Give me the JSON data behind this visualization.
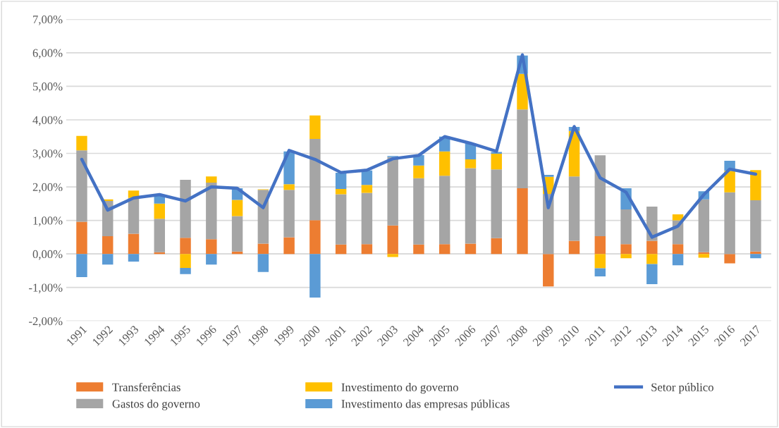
{
  "chart_data": {
    "type": "bar",
    "stacked": true,
    "grid": "y",
    "legend": "bottom",
    "categories": [
      "1991",
      "1992",
      "1993",
      "1994",
      "1995",
      "1996",
      "1997",
      "1998",
      "1999",
      "2000",
      "2001",
      "2002",
      "2003",
      "2004",
      "2005",
      "2006",
      "2007",
      "2008",
      "2009",
      "2010",
      "2011",
      "2012",
      "2013",
      "2014",
      "2015",
      "2016",
      "2017"
    ],
    "ylim": [
      -2,
      7
    ],
    "yticks": [
      {
        "value": -2,
        "label": "-2,00%"
      },
      {
        "value": -1,
        "label": "-1,00%"
      },
      {
        "value": 0,
        "label": "0,00%"
      },
      {
        "value": 1,
        "label": "1,00%"
      },
      {
        "value": 2,
        "label": "2,00%"
      },
      {
        "value": 3,
        "label": "3,00%"
      },
      {
        "value": 4,
        "label": "4,00%"
      },
      {
        "value": 5,
        "label": "5,00%"
      },
      {
        "value": 6,
        "label": "6,00%"
      },
      {
        "value": 7,
        "label": "7,00%"
      }
    ],
    "series": [
      {
        "name": "Transferências",
        "color": "#ed7d31",
        "values": [
          0.96,
          0.53,
          0.6,
          0.05,
          0.48,
          0.44,
          0.07,
          0.31,
          0.5,
          1.01,
          0.28,
          0.29,
          0.85,
          0.28,
          0.29,
          0.31,
          0.47,
          1.96,
          -0.97,
          0.39,
          0.53,
          0.29,
          0.39,
          0.29,
          0.05,
          -0.28,
          0.07
        ]
      },
      {
        "name": "Gastos do governo",
        "color": "#a5a5a5",
        "values": [
          2.13,
          1.05,
          1.07,
          1.0,
          1.73,
          1.69,
          1.06,
          1.6,
          1.41,
          2.42,
          1.5,
          1.53,
          2.04,
          1.98,
          2.04,
          2.25,
          2.05,
          2.35,
          1.79,
          1.92,
          2.41,
          1.04,
          1.02,
          0.71,
          1.58,
          1.84,
          1.53
        ]
      },
      {
        "name": "Investimento do governo",
        "color": "#ffc000",
        "values": [
          0.43,
          0.05,
          0.22,
          0.45,
          -0.42,
          0.18,
          0.48,
          0.02,
          0.17,
          0.7,
          0.16,
          0.24,
          -0.09,
          0.38,
          0.73,
          0.26,
          0.47,
          1.06,
          0.51,
          1.36,
          -0.43,
          -0.13,
          -0.3,
          0.18,
          -0.11,
          0.64,
          0.9
        ]
      },
      {
        "name": "Investimento das empresas públicas",
        "color": "#5b9bd5",
        "values": [
          -0.69,
          -0.32,
          -0.23,
          0.27,
          -0.18,
          -0.32,
          0.35,
          -0.54,
          0.98,
          -1.3,
          0.48,
          0.43,
          0.03,
          0.31,
          0.44,
          0.48,
          0.05,
          0.55,
          0.06,
          0.12,
          -0.24,
          0.63,
          -0.6,
          -0.34,
          0.24,
          0.3,
          -0.13
        ]
      },
      {
        "name": "Setor público",
        "type": "line",
        "color": "#4472c4",
        "values": [
          2.82,
          1.31,
          1.67,
          1.77,
          1.58,
          2.0,
          1.96,
          1.38,
          3.09,
          2.82,
          2.43,
          2.5,
          2.84,
          2.94,
          3.5,
          3.3,
          3.06,
          5.94,
          1.38,
          3.8,
          2.27,
          1.84,
          0.5,
          0.83,
          1.77,
          2.53,
          2.38
        ]
      }
    ]
  }
}
